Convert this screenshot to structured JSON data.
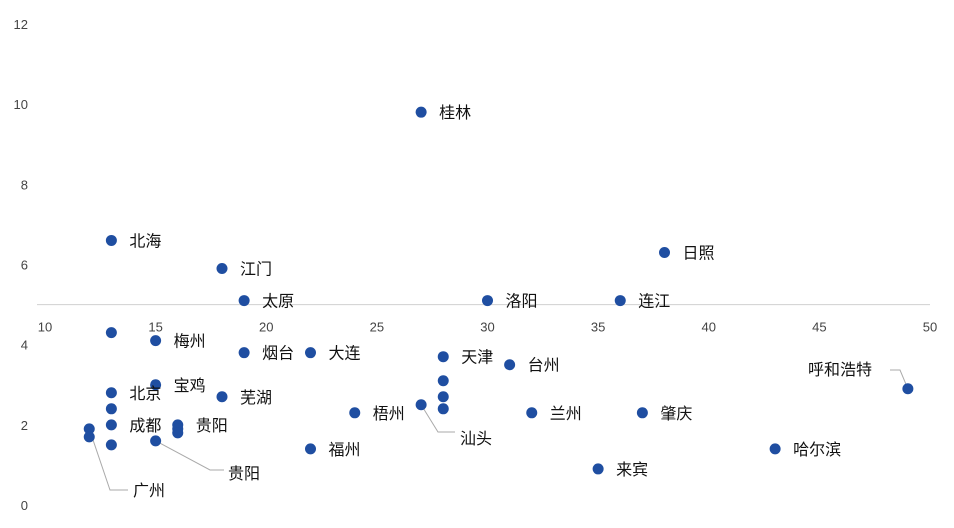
{
  "chart_data": {
    "type": "scatter",
    "title": "",
    "xlabel": "",
    "ylabel": "",
    "xlim": [
      10,
      50
    ],
    "ylim": [
      0,
      12
    ],
    "x_ticks": [
      10,
      15,
      20,
      25,
      30,
      35,
      40,
      45,
      50
    ],
    "y_ticks": [
      0,
      2,
      4,
      6,
      8,
      10,
      12
    ],
    "x_axis_crosses_y": 5,
    "grid": false,
    "marker_color": "#1f4ea1",
    "points": [
      {
        "name": "桂林",
        "x": 27,
        "y": 9.8
      },
      {
        "name": "北海",
        "x": 13,
        "y": 6.6
      },
      {
        "name": "江门",
        "x": 18,
        "y": 5.9
      },
      {
        "name": "太原",
        "x": 19,
        "y": 5.1
      },
      {
        "name": "洛阳",
        "x": 30,
        "y": 5.1
      },
      {
        "name": "连江",
        "x": 36,
        "y": 5.1
      },
      {
        "name": "日照",
        "x": 38,
        "y": 6.3
      },
      {
        "name": "",
        "x": 13,
        "y": 4.3
      },
      {
        "name": "梅州",
        "x": 15,
        "y": 4.1
      },
      {
        "name": "烟台",
        "x": 19,
        "y": 3.8
      },
      {
        "name": "大连",
        "x": 22,
        "y": 3.8
      },
      {
        "name": "天津",
        "x": 28,
        "y": 3.7
      },
      {
        "name": "台州",
        "x": 31,
        "y": 3.5
      },
      {
        "name": "",
        "x": 28,
        "y": 3.1
      },
      {
        "name": "",
        "x": 28,
        "y": 2.7
      },
      {
        "name": "",
        "x": 28,
        "y": 2.4
      },
      {
        "name": "汕头",
        "x": 27,
        "y": 2.5
      },
      {
        "name": "梧州",
        "x": 24,
        "y": 2.3
      },
      {
        "name": "兰州",
        "x": 32,
        "y": 2.3
      },
      {
        "name": "肇庆",
        "x": 37,
        "y": 2.3
      },
      {
        "name": "呼和浩特",
        "x": 49,
        "y": 2.9
      },
      {
        "name": "哈尔滨",
        "x": 43,
        "y": 1.4
      },
      {
        "name": "来宾",
        "x": 35,
        "y": 0.9
      },
      {
        "name": "福州",
        "x": 22,
        "y": 1.4
      },
      {
        "name": "北京",
        "x": 13,
        "y": 2.8
      },
      {
        "name": "宝鸡",
        "x": 15,
        "y": 3.0
      },
      {
        "name": "芜湖",
        "x": 18,
        "y": 2.7
      },
      {
        "name": "",
        "x": 13,
        "y": 2.4
      },
      {
        "name": "成都",
        "x": 13,
        "y": 2.0
      },
      {
        "name": "贵阳",
        "x": 16,
        "y": 2.0
      },
      {
        "name": "",
        "x": 16,
        "y": 1.9
      },
      {
        "name": "",
        "x": 16,
        "y": 1.8
      },
      {
        "name": "广州",
        "x": 12,
        "y": 1.9
      },
      {
        "name": "",
        "x": 12,
        "y": 1.7
      },
      {
        "name": "",
        "x": 13,
        "y": 1.5
      },
      {
        "name": "贵阳",
        "x": 15,
        "y": 1.6
      }
    ]
  }
}
